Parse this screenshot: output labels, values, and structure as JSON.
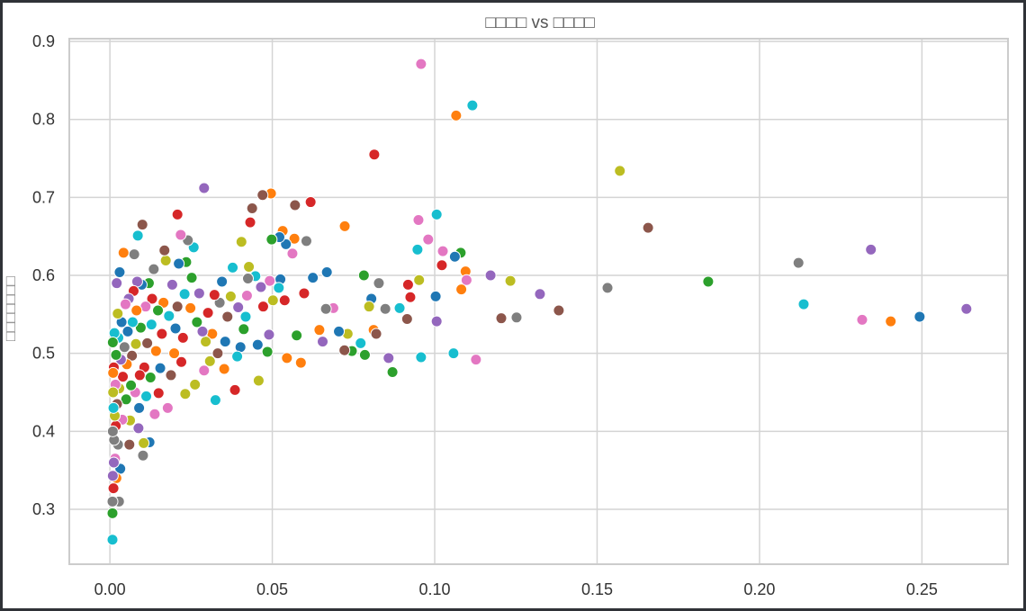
{
  "chart_data": {
    "type": "scatter",
    "title": "□□□□ vs □□□□",
    "xlabel": "",
    "ylabel": "□□□□□□□",
    "xlim": [
      -0.0125,
      0.2765
    ],
    "ylim": [
      0.2296,
      0.9035
    ],
    "xticks": [
      "0.00",
      "0.05",
      "0.10",
      "0.15",
      "0.20",
      "0.25"
    ],
    "xtick_values": [
      0,
      0.05,
      0.1,
      0.15,
      0.2,
      0.25
    ],
    "yticks": [
      "0.3",
      "0.4",
      "0.5",
      "0.6",
      "0.7",
      "0.8",
      "0.9"
    ],
    "ytick_values": [
      0.3,
      0.4,
      0.5,
      0.6,
      0.7,
      0.8,
      0.9
    ],
    "grid": true,
    "palette": [
      "#1f77b4",
      "#ff7f0e",
      "#2ca02c",
      "#d62728",
      "#9467bd",
      "#8c564b",
      "#e377c2",
      "#7f7f7f",
      "#bcbd22",
      "#17becf"
    ],
    "points": [
      [
        0.0958,
        0.871,
        6
      ],
      [
        0.1066,
        0.805,
        1
      ],
      [
        0.1116,
        0.818,
        9
      ],
      [
        0.0814,
        0.755,
        3
      ],
      [
        0.157,
        0.734,
        8
      ],
      [
        0.1657,
        0.661,
        5
      ],
      [
        0.1006,
        0.678,
        9
      ],
      [
        0.095,
        0.671,
        6
      ],
      [
        0.029,
        0.712,
        4
      ],
      [
        0.0208,
        0.678,
        3
      ],
      [
        0.0496,
        0.705,
        1
      ],
      [
        0.047,
        0.703,
        5
      ],
      [
        0.0618,
        0.694,
        3
      ],
      [
        0.057,
        0.69,
        5
      ],
      [
        0.0723,
        0.663,
        1
      ],
      [
        0.212,
        0.616,
        7
      ],
      [
        0.2343,
        0.633,
        4
      ],
      [
        0.2136,
        0.563,
        9
      ],
      [
        0.2316,
        0.543,
        6
      ],
      [
        0.2404,
        0.541,
        1
      ],
      [
        0.2493,
        0.547,
        0
      ],
      [
        0.2637,
        0.557,
        4
      ],
      [
        0.1842,
        0.592,
        2
      ],
      [
        0.1532,
        0.584,
        7
      ],
      [
        0.1382,
        0.555,
        5
      ],
      [
        0.1324,
        0.576,
        4
      ],
      [
        0.1252,
        0.546,
        7
      ],
      [
        0.1205,
        0.545,
        5
      ],
      [
        0.1233,
        0.593,
        8
      ],
      [
        0.1172,
        0.6,
        4
      ],
      [
        0.1127,
        0.492,
        6
      ],
      [
        0.1058,
        0.5,
        9
      ],
      [
        0.0958,
        0.495,
        9
      ],
      [
        0.087,
        0.476,
        2
      ],
      [
        0.1006,
        0.541,
        4
      ],
      [
        0.1003,
        0.573,
        0
      ],
      [
        0.108,
        0.629,
        2
      ],
      [
        0.1095,
        0.605,
        1
      ],
      [
        0.1025,
        0.631,
        6
      ],
      [
        0.0947,
        0.633,
        9
      ],
      [
        0.098,
        0.646,
        6
      ],
      [
        0.1062,
        0.624,
        0
      ],
      [
        0.1022,
        0.613,
        3
      ],
      [
        0.1098,
        0.594,
        6
      ],
      [
        0.1082,
        0.582,
        1
      ],
      [
        0.0918,
        0.588,
        3
      ],
      [
        0.0925,
        0.572,
        3
      ],
      [
        0.0952,
        0.594,
        8
      ],
      [
        0.0915,
        0.544,
        5
      ],
      [
        0.0892,
        0.558,
        9
      ],
      [
        0.0858,
        0.494,
        4
      ],
      [
        0.0848,
        0.557,
        7
      ],
      [
        0.0828,
        0.59,
        7
      ],
      [
        0.0805,
        0.57,
        0
      ],
      [
        0.0798,
        0.56,
        8
      ],
      [
        0.0812,
        0.53,
        1
      ],
      [
        0.082,
        0.525,
        5
      ],
      [
        0.0782,
        0.6,
        2
      ],
      [
        0.0785,
        0.498,
        2
      ],
      [
        0.0772,
        0.513,
        9
      ],
      [
        0.0745,
        0.503,
        2
      ],
      [
        0.0732,
        0.525,
        8
      ],
      [
        0.0722,
        0.504,
        5
      ],
      [
        0.0705,
        0.528,
        0
      ],
      [
        0.0688,
        0.558,
        6
      ],
      [
        0.0668,
        0.604,
        0
      ],
      [
        0.0665,
        0.557,
        7
      ],
      [
        0.0655,
        0.515,
        4
      ],
      [
        0.0645,
        0.53,
        1
      ],
      [
        0.0625,
        0.597,
        0
      ],
      [
        0.0605,
        0.644,
        7
      ],
      [
        0.0598,
        0.577,
        3
      ],
      [
        0.0588,
        0.488,
        1
      ],
      [
        0.0575,
        0.523,
        2
      ],
      [
        0.0562,
        0.628,
        6
      ],
      [
        0.0568,
        0.647,
        1
      ],
      [
        0.0542,
        0.64,
        0
      ],
      [
        0.0532,
        0.657,
        1
      ],
      [
        0.0522,
        0.649,
        0
      ],
      [
        0.0525,
        0.595,
        0
      ],
      [
        0.052,
        0.584,
        9
      ],
      [
        0.0538,
        0.568,
        3
      ],
      [
        0.0545,
        0.494,
        1
      ],
      [
        0.0498,
        0.646,
        2
      ],
      [
        0.0502,
        0.568,
        8
      ],
      [
        0.0492,
        0.593,
        6
      ],
      [
        0.049,
        0.524,
        4
      ],
      [
        0.0485,
        0.502,
        2
      ],
      [
        0.0472,
        0.56,
        3
      ],
      [
        0.0465,
        0.585,
        4
      ],
      [
        0.0458,
        0.465,
        8
      ],
      [
        0.0455,
        0.511,
        0
      ],
      [
        0.0448,
        0.599,
        9
      ],
      [
        0.0438,
        0.686,
        5
      ],
      [
        0.0432,
        0.668,
        3
      ],
      [
        0.0428,
        0.611,
        8
      ],
      [
        0.0425,
        0.596,
        7
      ],
      [
        0.0422,
        0.574,
        6
      ],
      [
        0.0418,
        0.547,
        9
      ],
      [
        0.0412,
        0.531,
        2
      ],
      [
        0.0402,
        0.508,
        0
      ],
      [
        0.0405,
        0.643,
        8
      ],
      [
        0.0395,
        0.559,
        4
      ],
      [
        0.0392,
        0.496,
        9
      ],
      [
        0.0385,
        0.453,
        3
      ],
      [
        0.0378,
        0.61,
        9
      ],
      [
        0.0372,
        0.573,
        8
      ],
      [
        0.0362,
        0.547,
        5
      ],
      [
        0.0355,
        0.515,
        0
      ],
      [
        0.0352,
        0.48,
        1
      ],
      [
        0.0345,
        0.592,
        0
      ],
      [
        0.0338,
        0.565,
        7
      ],
      [
        0.0332,
        0.5,
        5
      ],
      [
        0.0325,
        0.44,
        9
      ],
      [
        0.0322,
        0.575,
        3
      ],
      [
        0.0315,
        0.525,
        1
      ],
      [
        0.0308,
        0.49,
        8
      ],
      [
        0.0302,
        0.552,
        3
      ],
      [
        0.0295,
        0.515,
        8
      ],
      [
        0.029,
        0.478,
        6
      ],
      [
        0.0285,
        0.528,
        4
      ],
      [
        0.0275,
        0.577,
        4
      ],
      [
        0.0268,
        0.54,
        2
      ],
      [
        0.0262,
        0.46,
        8
      ],
      [
        0.0258,
        0.636,
        9
      ],
      [
        0.0252,
        0.597,
        2
      ],
      [
        0.0248,
        0.558,
        1
      ],
      [
        0.024,
        0.645,
        7
      ],
      [
        0.0235,
        0.617,
        2
      ],
      [
        0.023,
        0.576,
        9
      ],
      [
        0.0225,
        0.52,
        3
      ],
      [
        0.022,
        0.489,
        3
      ],
      [
        0.0232,
        0.448,
        8
      ],
      [
        0.0218,
        0.652,
        6
      ],
      [
        0.0212,
        0.615,
        0
      ],
      [
        0.0208,
        0.56,
        5
      ],
      [
        0.0202,
        0.532,
        0
      ],
      [
        0.0198,
        0.5,
        1
      ],
      [
        0.0192,
        0.588,
        4
      ],
      [
        0.0188,
        0.472,
        5
      ],
      [
        0.0182,
        0.548,
        9
      ],
      [
        0.0178,
        0.43,
        6
      ],
      [
        0.0172,
        0.619,
        8
      ],
      [
        0.0168,
        0.632,
        5
      ],
      [
        0.0165,
        0.565,
        1
      ],
      [
        0.016,
        0.525,
        3
      ],
      [
        0.0155,
        0.481,
        0
      ],
      [
        0.015,
        0.449,
        3
      ],
      [
        0.0148,
        0.555,
        2
      ],
      [
        0.0142,
        0.503,
        1
      ],
      [
        0.0138,
        0.422,
        6
      ],
      [
        0.0135,
        0.608,
        7
      ],
      [
        0.013,
        0.57,
        3
      ],
      [
        0.0128,
        0.537,
        9
      ],
      [
        0.0125,
        0.469,
        2
      ],
      [
        0.0122,
        0.386,
        0
      ],
      [
        0.012,
        0.59,
        2
      ],
      [
        0.0115,
        0.513,
        5
      ],
      [
        0.0112,
        0.445,
        9
      ],
      [
        0.011,
        0.56,
        6
      ],
      [
        0.0106,
        0.482,
        3
      ],
      [
        0.0104,
        0.385,
        8
      ],
      [
        0.0102,
        0.369,
        7
      ],
      [
        0.01,
        0.665,
        5
      ],
      [
        0.0098,
        0.588,
        0
      ],
      [
        0.0095,
        0.533,
        2
      ],
      [
        0.0092,
        0.472,
        3
      ],
      [
        0.009,
        0.43,
        0
      ],
      [
        0.0088,
        0.404,
        4
      ],
      [
        0.0086,
        0.651,
        9
      ],
      [
        0.0084,
        0.592,
        4
      ],
      [
        0.0082,
        0.555,
        1
      ],
      [
        0.008,
        0.512,
        8
      ],
      [
        0.0078,
        0.45,
        6
      ],
      [
        0.0075,
        0.627,
        7
      ],
      [
        0.0073,
        0.58,
        3
      ],
      [
        0.007,
        0.54,
        9
      ],
      [
        0.0068,
        0.497,
        5
      ],
      [
        0.0065,
        0.459,
        2
      ],
      [
        0.0062,
        0.414,
        8
      ],
      [
        0.006,
        0.383,
        5
      ],
      [
        0.0058,
        0.57,
        4
      ],
      [
        0.0055,
        0.528,
        0
      ],
      [
        0.0052,
        0.486,
        1
      ],
      [
        0.005,
        0.441,
        2
      ],
      [
        0.0048,
        0.563,
        6
      ],
      [
        0.0045,
        0.508,
        7
      ],
      [
        0.0042,
        0.629,
        1
      ],
      [
        0.004,
        0.47,
        3
      ],
      [
        0.0038,
        0.415,
        6
      ],
      [
        0.0036,
        0.54,
        0
      ],
      [
        0.0034,
        0.492,
        4
      ],
      [
        0.0032,
        0.352,
        0
      ],
      [
        0.003,
        0.604,
        0
      ],
      [
        0.0029,
        0.455,
        8
      ],
      [
        0.0028,
        0.31,
        7
      ],
      [
        0.0026,
        0.52,
        9
      ],
      [
        0.0025,
        0.383,
        7
      ],
      [
        0.0024,
        0.551,
        8
      ],
      [
        0.0022,
        0.435,
        5
      ],
      [
        0.0021,
        0.59,
        4
      ],
      [
        0.002,
        0.34,
        1
      ],
      [
        0.0019,
        0.498,
        2
      ],
      [
        0.0018,
        0.407,
        3
      ],
      [
        0.0017,
        0.46,
        6
      ],
      [
        0.0016,
        0.365,
        6
      ],
      [
        0.0015,
        0.42,
        8
      ],
      [
        0.0014,
        0.526,
        9
      ],
      [
        0.0013,
        0.389,
        7
      ],
      [
        0.0012,
        0.482,
        3
      ],
      [
        0.0011,
        0.327,
        3
      ],
      [
        0.001,
        0.45,
        8
      ],
      [
        0.0009,
        0.514,
        2
      ],
      [
        0.0009,
        0.343,
        4
      ],
      [
        0.0008,
        0.261,
        9
      ],
      [
        0.0008,
        0.295,
        2
      ],
      [
        0.0008,
        0.31,
        7
      ],
      [
        0.0009,
        0.4,
        7
      ],
      [
        0.001,
        0.475,
        1
      ],
      [
        0.0012,
        0.36,
        4
      ],
      [
        0.0011,
        0.43,
        9
      ]
    ]
  }
}
